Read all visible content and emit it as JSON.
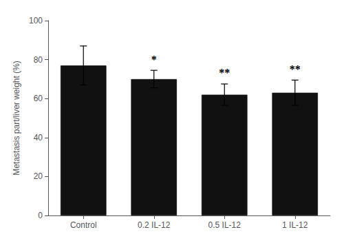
{
  "chart_data": {
    "type": "bar",
    "categories": [
      "Control",
      "0.2 IL-12",
      "0.5 IL-12",
      "1 IL-12"
    ],
    "values": [
      77.0,
      70.0,
      62.0,
      63.0
    ],
    "errors": [
      10.0,
      4.5,
      5.5,
      6.5
    ],
    "color": "#111111",
    "ylabel": "Metastasis part/liver weight (%)",
    "ylim": [
      0,
      100
    ],
    "yticks": [
      0,
      20,
      40,
      60,
      80,
      100
    ],
    "grid": false,
    "annotations": [
      {
        "category": "0.2 IL-12",
        "text": "*"
      },
      {
        "category": "0.5 IL-12",
        "text": "**"
      },
      {
        "category": "1 IL-12",
        "text": "**"
      }
    ]
  }
}
